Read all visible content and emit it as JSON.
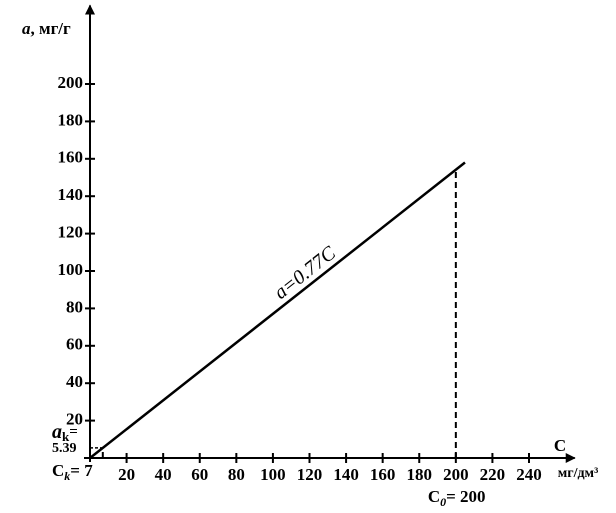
{
  "chart_data": {
    "type": "line",
    "ylabel": [
      "a",
      ", мг/г"
    ],
    "xlabel": "C",
    "xunit": "мг/дм³",
    "annotation": "a=0.77C",
    "x": [
      0,
      205
    ],
    "series": [
      {
        "name": "a=0.77C",
        "color": "#000000",
        "values": [
          0,
          158
        ]
      }
    ],
    "points": [
      {
        "x": 7,
        "y": 5.39,
        "xlabel": [
          "C",
          "k",
          "= 7"
        ],
        "ylabel": [
          "a",
          "k",
          "="
        ],
        "yvalue_label": "5.39"
      },
      {
        "x": 200,
        "y": 154,
        "xlabel": [
          "C",
          "0",
          "= 200"
        ]
      }
    ],
    "xlim": [
      0,
      265
    ],
    "ylim": [
      0,
      242
    ],
    "xticks": [
      20,
      40,
      60,
      80,
      100,
      120,
      140,
      160,
      180,
      200,
      220,
      240
    ],
    "yticks": [
      20,
      40,
      60,
      80,
      100,
      120,
      140,
      160,
      180,
      200
    ],
    "grid": false
  }
}
